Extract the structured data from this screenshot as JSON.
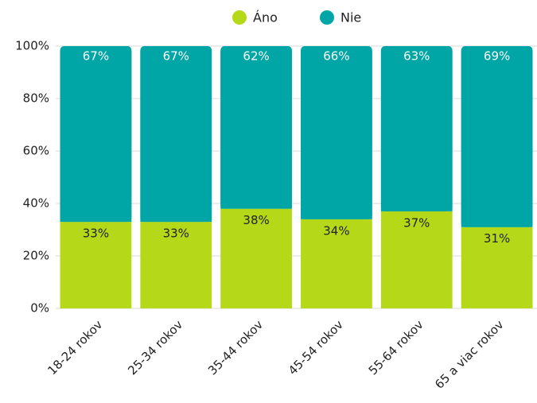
{
  "chart_data": {
    "type": "stacked_bar",
    "categories": [
      "18-24 rokov",
      "25-34 rokov",
      "35-44 rokov",
      "45-54 rokov",
      "55-64 rokov",
      "65 a viac rokov"
    ],
    "series": [
      {
        "name": "Áno",
        "color": "#b5d918",
        "values": [
          33,
          33,
          38,
          34,
          37,
          31
        ],
        "value_labels": [
          "33%",
          "33%",
          "38%",
          "34%",
          "37%",
          "31%"
        ]
      },
      {
        "name": "Nie",
        "color": "#00a6a6",
        "values": [
          67,
          67,
          62,
          66,
          63,
          69
        ],
        "value_labels": [
          "67%",
          "67%",
          "62%",
          "66%",
          "63%",
          "69%"
        ]
      }
    ],
    "ylim": [
      0,
      100
    ],
    "yticks": [
      {
        "value": 0,
        "label": "0%"
      },
      {
        "value": 20,
        "label": "20%"
      },
      {
        "value": 40,
        "label": "40%"
      },
      {
        "value": 60,
        "label": "60%"
      },
      {
        "value": 80,
        "label": "80%"
      },
      {
        "value": 100,
        "label": "100%"
      }
    ],
    "grid": true,
    "legend": "top"
  }
}
